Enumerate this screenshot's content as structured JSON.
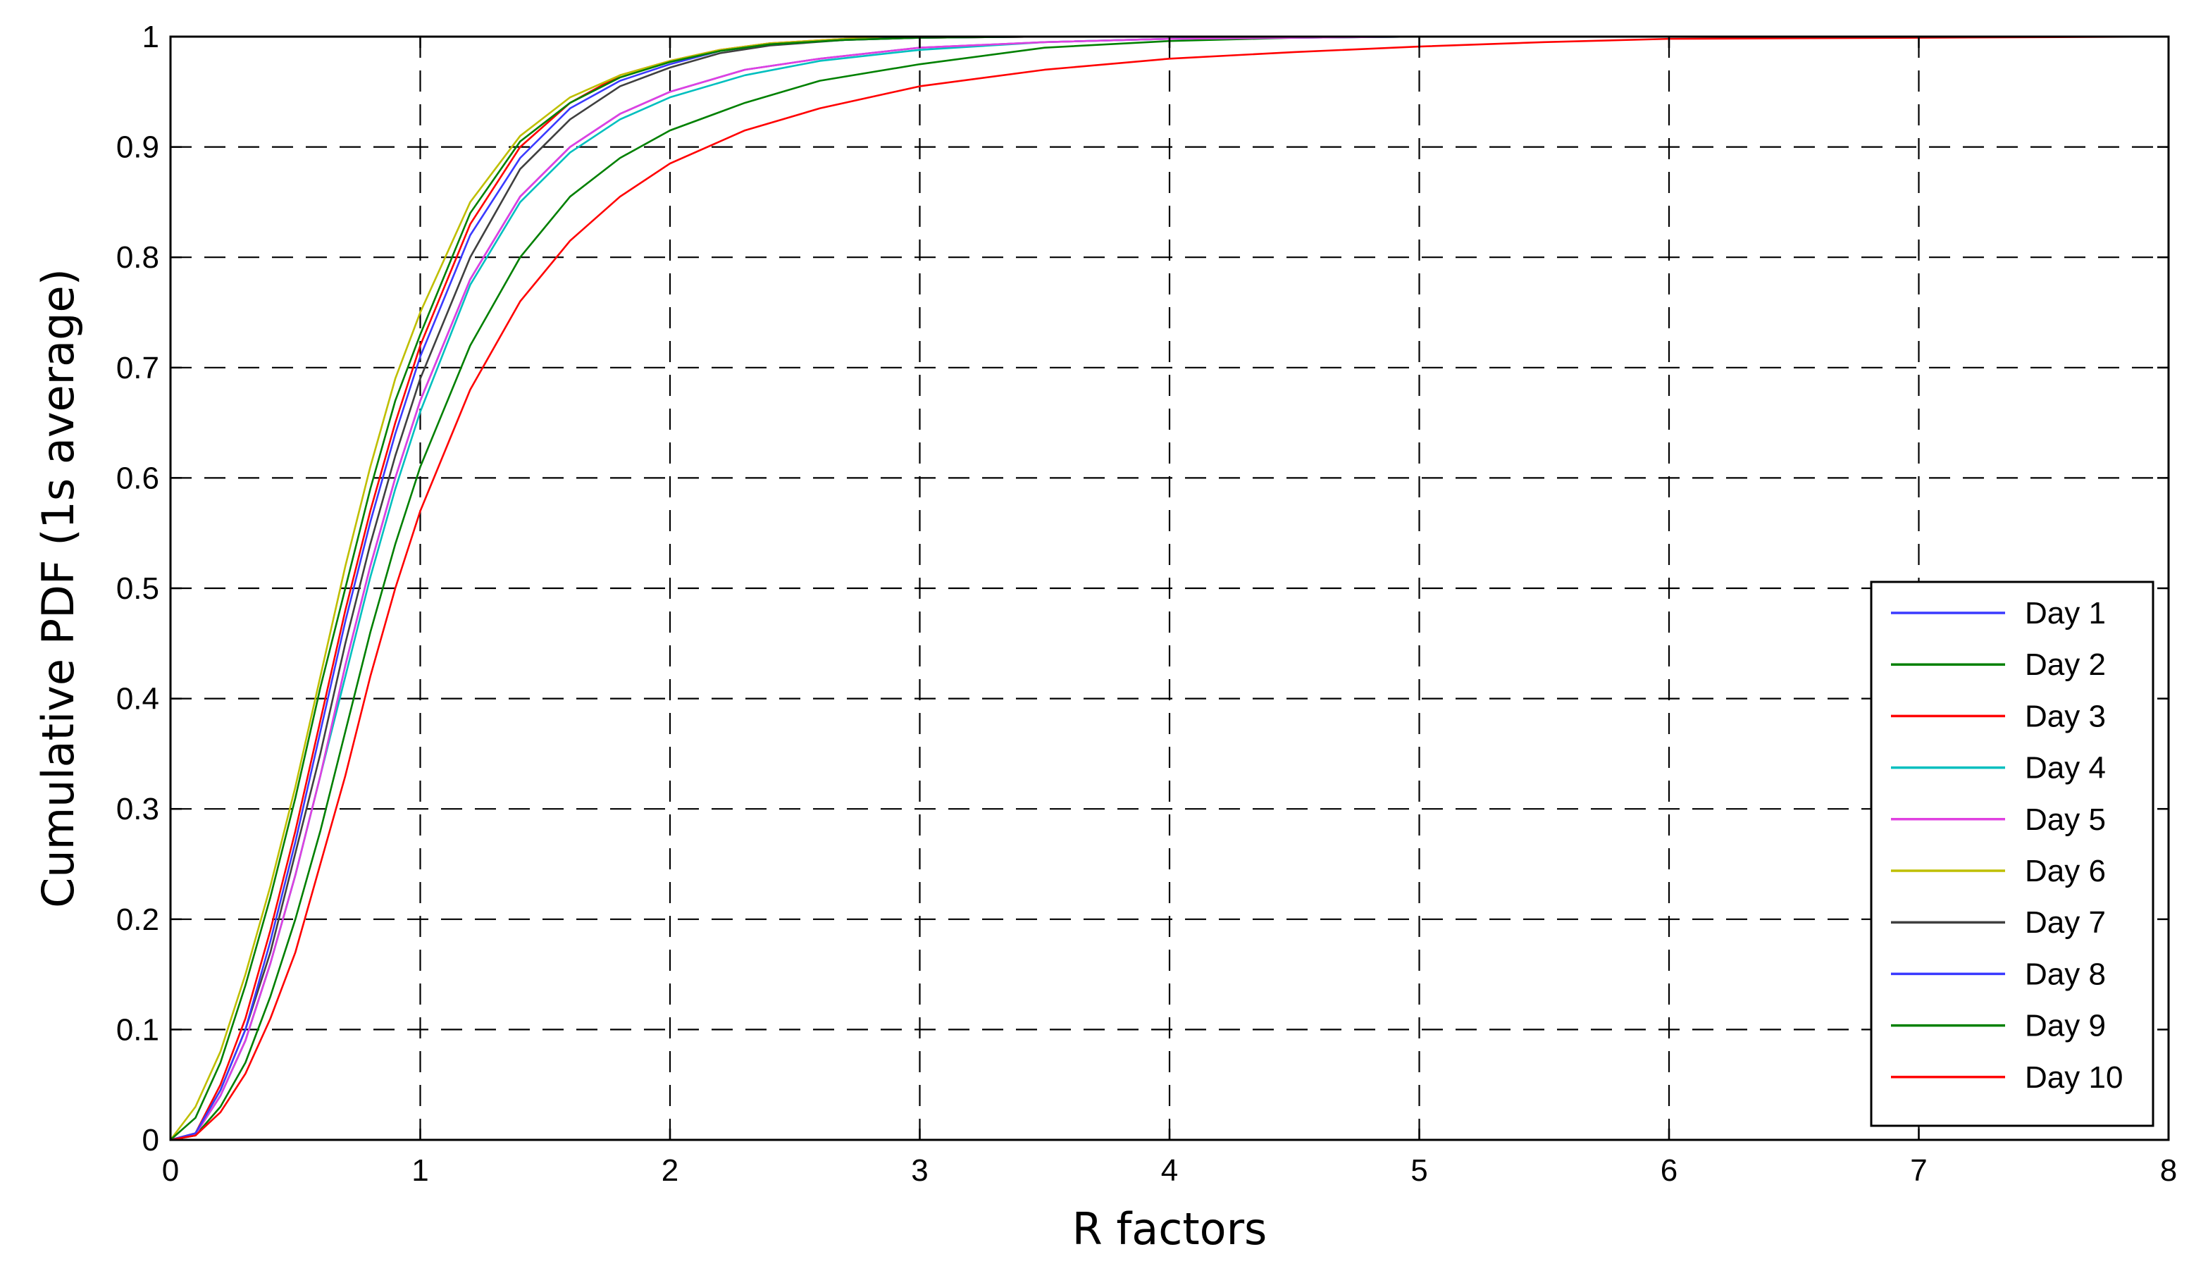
{
  "chart_data": {
    "type": "line",
    "title": "",
    "xlabel": "R factors",
    "ylabel": "Cumulative PDF (1s average)",
    "xlim": [
      0,
      8
    ],
    "ylim": [
      0,
      1
    ],
    "xticks": [
      0,
      1,
      2,
      3,
      4,
      5,
      6,
      7,
      8
    ],
    "xtick_labels": [
      "0",
      "1",
      "2",
      "3",
      "4",
      "5",
      "6",
      "7",
      "8"
    ],
    "yticks": [
      0,
      0.1,
      0.2,
      0.3,
      0.4,
      0.5,
      0.6,
      0.7,
      0.8,
      0.9,
      1
    ],
    "ytick_labels": [
      "0",
      "0.1",
      "0.2",
      "0.3",
      "0.4",
      "0.5",
      "0.6",
      "0.7",
      "0.8",
      "0.9",
      "1"
    ],
    "grid": true,
    "grid_style": "dashed",
    "legend_position": "bottom-right",
    "series": [
      {
        "name": "Day 1",
        "color": "#3a3aff",
        "x": [
          0,
          0.1,
          0.2,
          0.3,
          0.4,
          0.5,
          0.6,
          0.7,
          0.8,
          0.9,
          1.0,
          1.2,
          1.4,
          1.6,
          1.8,
          2.0,
          2.3,
          2.6,
          3.0,
          3.5,
          4.0,
          4.5,
          5.0,
          6.0,
          7.0,
          8.0
        ],
        "y": [
          0,
          0.005,
          0.04,
          0.09,
          0.16,
          0.24,
          0.33,
          0.43,
          0.52,
          0.6,
          0.67,
          0.78,
          0.855,
          0.9,
          0.93,
          0.95,
          0.97,
          0.98,
          0.99,
          0.995,
          0.998,
          0.999,
          1,
          1,
          1,
          1
        ]
      },
      {
        "name": "Day 2",
        "color": "#008000",
        "x": [
          0,
          0.1,
          0.2,
          0.3,
          0.4,
          0.5,
          0.6,
          0.7,
          0.8,
          0.9,
          1.0,
          1.2,
          1.4,
          1.6,
          1.8,
          2.0,
          2.3,
          2.6,
          3.0,
          3.5,
          4.0,
          4.5,
          5.0,
          6.0,
          7.0,
          8.0
        ],
        "y": [
          0,
          0.004,
          0.03,
          0.07,
          0.13,
          0.2,
          0.28,
          0.37,
          0.46,
          0.54,
          0.61,
          0.72,
          0.8,
          0.855,
          0.89,
          0.915,
          0.94,
          0.96,
          0.975,
          0.99,
          0.996,
          0.999,
          1,
          1,
          1,
          1
        ]
      },
      {
        "name": "Day 3",
        "color": "#ff0000",
        "x": [
          0,
          0.1,
          0.2,
          0.3,
          0.4,
          0.5,
          0.6,
          0.7,
          0.8,
          0.9,
          1.0,
          1.2,
          1.4,
          1.6,
          1.8,
          2.0,
          2.2,
          2.4,
          2.7,
          3.0,
          3.5,
          4.0,
          5.0,
          6.0,
          7.0,
          8.0
        ],
        "y": [
          0,
          0.006,
          0.05,
          0.11,
          0.19,
          0.28,
          0.38,
          0.48,
          0.57,
          0.65,
          0.72,
          0.83,
          0.9,
          0.94,
          0.965,
          0.978,
          0.988,
          0.994,
          0.998,
          0.999,
          1,
          1,
          1,
          1,
          1,
          1
        ]
      },
      {
        "name": "Day 4",
        "color": "#00bfbf",
        "x": [
          0,
          0.1,
          0.2,
          0.3,
          0.4,
          0.5,
          0.6,
          0.7,
          0.8,
          0.9,
          1.0,
          1.2,
          1.4,
          1.6,
          1.8,
          2.0,
          2.3,
          2.6,
          3.0,
          3.5,
          4.0,
          4.5,
          5.0,
          6.0,
          7.0,
          8.0
        ],
        "y": [
          0,
          0.005,
          0.04,
          0.09,
          0.16,
          0.24,
          0.33,
          0.42,
          0.51,
          0.59,
          0.66,
          0.775,
          0.85,
          0.895,
          0.925,
          0.945,
          0.965,
          0.978,
          0.988,
          0.995,
          0.998,
          0.999,
          1,
          1,
          1,
          1
        ]
      },
      {
        "name": "Day 5",
        "color": "#e040e0",
        "x": [
          0,
          0.1,
          0.2,
          0.3,
          0.4,
          0.5,
          0.6,
          0.7,
          0.8,
          0.9,
          1.0,
          1.2,
          1.4,
          1.6,
          1.8,
          2.0,
          2.3,
          2.6,
          3.0,
          3.5,
          4.0,
          4.5,
          5.0,
          6.0,
          7.0,
          8.0
        ],
        "y": [
          0,
          0.005,
          0.04,
          0.09,
          0.16,
          0.24,
          0.33,
          0.43,
          0.52,
          0.6,
          0.67,
          0.78,
          0.855,
          0.9,
          0.93,
          0.95,
          0.97,
          0.98,
          0.99,
          0.995,
          0.998,
          0.999,
          1,
          1,
          1,
          1
        ]
      },
      {
        "name": "Day 6",
        "color": "#bfbf00",
        "x": [
          0,
          0.1,
          0.2,
          0.3,
          0.4,
          0.5,
          0.6,
          0.7,
          0.8,
          0.9,
          1.0,
          1.2,
          1.4,
          1.6,
          1.8,
          2.0,
          2.2,
          2.4,
          2.7,
          3.0,
          3.5,
          4.0,
          5.0,
          6.0,
          7.0,
          8.0
        ],
        "y": [
          0,
          0.03,
          0.08,
          0.15,
          0.23,
          0.32,
          0.42,
          0.52,
          0.61,
          0.69,
          0.75,
          0.85,
          0.91,
          0.945,
          0.965,
          0.978,
          0.988,
          0.994,
          0.998,
          0.999,
          1,
          1,
          1,
          1,
          1,
          1
        ]
      },
      {
        "name": "Day 7",
        "color": "#404040",
        "x": [
          0,
          0.1,
          0.2,
          0.3,
          0.4,
          0.5,
          0.6,
          0.7,
          0.8,
          0.9,
          1.0,
          1.2,
          1.4,
          1.6,
          1.8,
          2.0,
          2.2,
          2.4,
          2.7,
          3.0,
          3.5,
          4.0,
          5.0,
          6.0,
          7.0,
          8.0
        ],
        "y": [
          0,
          0.006,
          0.045,
          0.1,
          0.17,
          0.26,
          0.35,
          0.45,
          0.54,
          0.62,
          0.69,
          0.8,
          0.88,
          0.925,
          0.955,
          0.972,
          0.985,
          0.992,
          0.997,
          0.999,
          1,
          1,
          1,
          1,
          1,
          1
        ]
      },
      {
        "name": "Day 8",
        "color": "#3a3aff",
        "x": [
          0,
          0.1,
          0.2,
          0.3,
          0.4,
          0.5,
          0.6,
          0.7,
          0.8,
          0.9,
          1.0,
          1.2,
          1.4,
          1.6,
          1.8,
          2.0,
          2.2,
          2.4,
          2.7,
          3.0,
          3.5,
          4.0,
          5.0,
          6.0,
          7.0,
          8.0
        ],
        "y": [
          0,
          0.006,
          0.045,
          0.1,
          0.18,
          0.27,
          0.37,
          0.47,
          0.56,
          0.64,
          0.71,
          0.82,
          0.89,
          0.935,
          0.96,
          0.975,
          0.987,
          0.993,
          0.997,
          0.999,
          1,
          1,
          1,
          1,
          1,
          1
        ]
      },
      {
        "name": "Day 9",
        "color": "#008000",
        "x": [
          0,
          0.1,
          0.2,
          0.3,
          0.4,
          0.5,
          0.6,
          0.7,
          0.8,
          0.9,
          1.0,
          1.2,
          1.4,
          1.6,
          1.8,
          2.0,
          2.2,
          2.4,
          2.7,
          3.0,
          3.5,
          4.0,
          5.0,
          6.0,
          7.0,
          8.0
        ],
        "y": [
          0,
          0.02,
          0.07,
          0.14,
          0.22,
          0.31,
          0.41,
          0.5,
          0.59,
          0.67,
          0.73,
          0.84,
          0.905,
          0.94,
          0.963,
          0.977,
          0.987,
          0.993,
          0.997,
          0.999,
          1,
          1,
          1,
          1,
          1,
          1
        ]
      },
      {
        "name": "Day 10",
        "color": "#ff0000",
        "x": [
          0,
          0.1,
          0.2,
          0.3,
          0.4,
          0.5,
          0.6,
          0.7,
          0.8,
          0.9,
          1.0,
          1.2,
          1.4,
          1.6,
          1.8,
          2.0,
          2.3,
          2.6,
          3.0,
          3.5,
          4.0,
          4.5,
          5.0,
          5.5,
          6.0,
          7.0,
          8.0
        ],
        "y": [
          0,
          0.004,
          0.025,
          0.06,
          0.11,
          0.17,
          0.25,
          0.33,
          0.42,
          0.5,
          0.57,
          0.68,
          0.76,
          0.815,
          0.855,
          0.885,
          0.915,
          0.935,
          0.955,
          0.97,
          0.98,
          0.986,
          0.991,
          0.995,
          0.998,
          0.999,
          1
        ]
      }
    ]
  }
}
